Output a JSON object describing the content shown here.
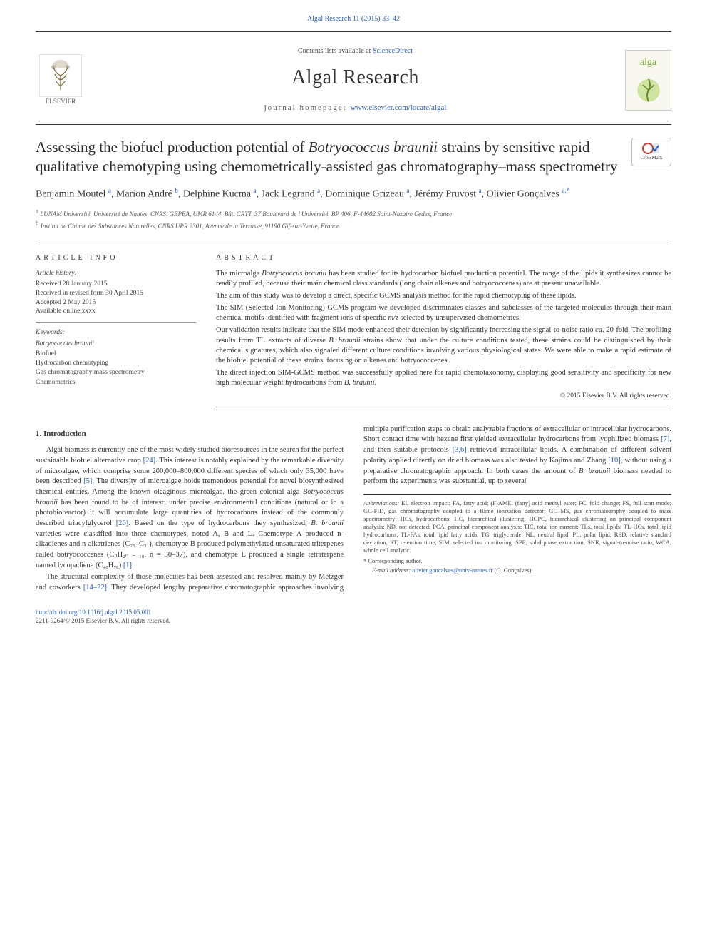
{
  "journal": {
    "top_link": "Algal Research 11 (2015) 33–42",
    "contents_line_prefix": "Contents lists available at ",
    "contents_line_link": "ScienceDirect",
    "title": "Algal Research",
    "homepage_prefix": "journal homepage: ",
    "homepage_url": "www.elsevier.com/locate/algal",
    "publisher_label": "ELSEVIER"
  },
  "crossmark_label": "CrossMark",
  "article": {
    "title_pre": "Assessing the biofuel production potential of ",
    "title_ital": "Botryococcus braunii",
    "title_post": " strains by sensitive rapid qualitative chemotyping using chemometrically-assisted gas chromatography–mass spectrometry",
    "authors_html": "Benjamin Moutel <sup>a</sup>, Marion André <sup>b</sup>, Delphine Kucma <sup>a</sup>, Jack Legrand <sup>a</sup>, Dominique Grizeau <sup>a</sup>, Jérémy Pruvost <sup>a</sup>, Olivier Gonçalves <sup>a,*</sup>",
    "affiliations": {
      "a": "LUNAM Université, Université de Nantes, CNRS, GEPEA, UMR 6144, Bât. CRTT, 37 Boulevard de l'Université, BP 406, F-44602 Saint-Nazaire Cedex, France",
      "b": "Institut de Chimie des Substances Naturelles, CNRS UPR 2301, Avenue de la Terrasse, 91190 Gif-sur-Yvette, France"
    }
  },
  "article_info": {
    "heading": "ARTICLE INFO",
    "history_label": "Article history:",
    "received": "Received 28 January 2015",
    "revised": "Received in revised form 30 April 2015",
    "accepted": "Accepted 2 May 2015",
    "available": "Available online xxxx",
    "keywords_label": "Keywords:",
    "keywords": [
      "Botryococcus braunii",
      "Biofuel",
      "Hydrocarbon chemotyping",
      "Gas chromatography mass spectrometry",
      "Chemometrics"
    ]
  },
  "abstract": {
    "heading": "ABSTRACT",
    "p1_a": "The microalga ",
    "p1_ital": "Botryococcus braunii",
    "p1_b": " has been studied for its hydrocarbon biofuel production potential. The range of the lipids it synthesizes cannot be readily profiled, because their main chemical class standards (long chain alkenes and botryococcenes) are at present unavailable.",
    "p2": "The aim of this study was to develop a direct, specific GCMS analysis method for the rapid chemotyping of these lipids.",
    "p3_a": "The SIM (Selected Ion Monitoring)-GCMS program we developed discriminates classes and subclasses of the targeted molecules through their main chemical motifs identified with fragment ions of specific ",
    "p3_ital": "m/z",
    "p3_b": " selected by unsupervised chemometrics.",
    "p4_a": "Our validation results indicate that the SIM mode enhanced their detection by significantly increasing the signal-to-noise ratio ",
    "p4_ital": "ca.",
    "p4_b": " 20-fold. The profiling results from TL extracts of diverse ",
    "p4_ital2": "B. braunii",
    "p4_c": " strains show that under the culture conditions tested, these strains could be distinguished by their chemical signatures, which also signaled different culture conditions involving various physiological states. We were able to make a rapid estimate of the biofuel potential of these strains, focusing on alkenes and botryococcenes.",
    "p5_a": "The direct injection SIM-GCMS method was successfully applied here for rapid chemotaxonomy, displaying good sensitivity and specificity for new high molecular weight hydrocarbons from ",
    "p5_ital": "B. braunii",
    "p5_b": ".",
    "copyright": "© 2015 Elsevier B.V. All rights reserved."
  },
  "intro": {
    "heading": "1. Introduction",
    "para1_a": "Algal biomass is currently one of the most widely studied bioresources in the search for the perfect sustainable biofuel alternative crop ",
    "para1_ref1": "[24]",
    "para1_b": ". This interest is notably explained by the remarkable diversity of microalgae, which comprise some 200,000–800,000 different species of which only 35,000 have been described ",
    "para1_ref2": "[5]",
    "para1_c": ". The diversity of microalgae holds tremendous potential for novel biosynthesized chemical entities. Among the known oleaginous microalgae, the green colonial alga ",
    "para1_ital": "Botryococcus",
    "para1_d_ital": "braunii",
    "para1_e": " has been found to be of interest: under precise environmental conditions (natural or in a photobioreactor) it will accumulate large quantities of hydrocarbons instead of the commonly described triacylglycerol ",
    "para1_ref3": "[26]",
    "para1_f": ". Based on the type of hydrocarbons they synthesized, ",
    "para1_ital2": "B. braunii",
    "para1_g": " varieties were classified into three chemotypes, noted A, B and L. Chemotype A produced n-alkadienes and n-alkatrienes (C₂₅–C₃₁), chemotype B produced polymethylated unsaturated triterpenes called botryococcenes (CₙH₂ₙ ₋ ₁₀, n = 30–37), and chemotype L produced a single tetraterpene named lycopadiene (C₄₀H₇₈) ",
    "para1_ref4": "[1]",
    "para1_h": ".",
    "para2_a": "The structural complexity of those molecules has been assessed and resolved mainly by Metzger and coworkers ",
    "para2_ref1": "[14–22]",
    "para2_b": ". They developed lengthy preparative chromatographic approaches involving multiple purification steps to obtain analyzable fractions of extracellular or intracellular hydrocarbons. Short contact time with hexane first yielded extracellular hydrocarbons from lyophilized biomass ",
    "para2_ref2": "[7]",
    "para2_c": ", and then suitable protocols ",
    "para2_ref3": "[3,6]",
    "para2_d": " retrieved intracellular lipids. A combination of different solvent polarity applied directly on dried biomass was also tested by Kojima and Zhang ",
    "para2_ref4": "[10]",
    "para2_e": ", without using a preparative chromatographic approach. In both cases the amount of ",
    "para2_ital": "B. braunii",
    "para2_f": " biomass needed to perform the experiments was substantial, up to several"
  },
  "footnotes": {
    "abbrev_label": "Abbreviations:",
    "abbrev_text": " EI, electron impact; FA, fatty acid; (F)AME, (fatty) acid methyl ester; FC, fold change; FS, full scan mode; GC-FID, gas chromatography coupled to a flame ionization detector; GC–MS, gas chromatography coupled to mass spectrometry; HCs, hydrocarbons; HC, hierarchical clustering; HCPC, hierarchical clustering on principal component analysis; ND, not detected; PCA, principal component analysis; TIC, total ion current; TLs, total lipids; TL-HCs, total lipid hydrocarbons; TL-FAs, total lipid fatty acids; TG, triglyceride; NL, neutral lipid; PL, polar lipid; RSD, relative standard deviation; RT, retention time; SIM, selected ion monitoring; SPE, solid phase extraction; SNR, signal-to-noise ratio; WCA, whole cell analytic.",
    "corr": "* Corresponding author.",
    "email_label": "E-mail address: ",
    "email": "olivier.goncalves@univ-nantes.fr",
    "email_suffix": " (O. Gonçalves)."
  },
  "footer": {
    "doi": "http://dx.doi.org/10.1016/j.algal.2015.05.001",
    "issn_line": "2211-9264/© 2015 Elsevier B.V. All rights reserved."
  },
  "colors": {
    "link": "#2a5db0",
    "text": "#333333",
    "muted": "#555555",
    "rule": "#333333",
    "cover_bg": "#f8f8f0",
    "alga": "#8bb53e"
  },
  "fontsizes": {
    "journal_title": 28,
    "article_title": 21,
    "authors": 14,
    "body": 10.5,
    "meta": 9.5,
    "footnote": 8.5
  }
}
